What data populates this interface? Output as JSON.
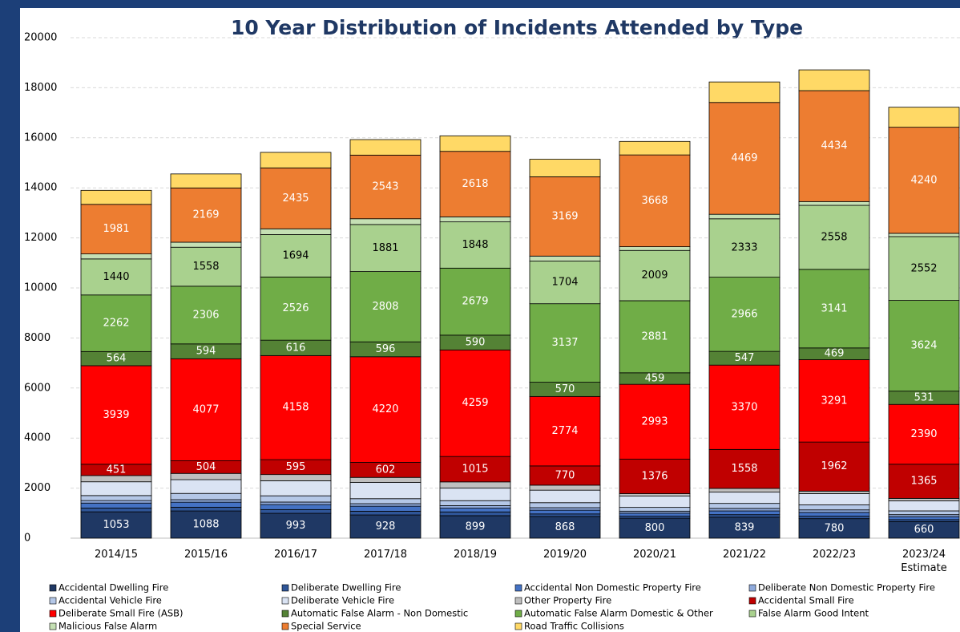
{
  "chart_data": {
    "type": "stacked_bar",
    "title": "10 Year Distribution of Incidents Attended by Type",
    "categories": [
      "2014/15",
      "2015/16",
      "2016/17",
      "2017/18",
      "2018/19",
      "2019/20",
      "2020/21",
      "2021/22",
      "2022/23",
      "2023/24\nEstimate"
    ],
    "ylim": [
      0,
      20000
    ],
    "yticks": [
      0,
      2000,
      4000,
      6000,
      8000,
      10000,
      12000,
      14000,
      16000,
      18000,
      20000
    ],
    "grid": true,
    "legend": "bottom",
    "series": [
      {
        "name": "Accidental Dwelling Fire",
        "color": "#1f3864",
        "show_labels": true,
        "label_color": "#ffffff",
        "values": [
          1053,
          1088,
          993,
          928,
          899,
          868,
          800,
          839,
          780,
          660
        ]
      },
      {
        "name": "Deliberate Dwelling Fire",
        "color": "#2f5597",
        "values": [
          150,
          150,
          150,
          150,
          150,
          100,
          80,
          100,
          100,
          80
        ]
      },
      {
        "name": "Accidental Non Domestic Property Fire",
        "color": "#4472c4",
        "values": [
          200,
          200,
          200,
          200,
          150,
          150,
          120,
          150,
          150,
          120
        ]
      },
      {
        "name": "Deliberate Non Domestic Property Fire",
        "color": "#8faadc",
        "values": [
          100,
          100,
          100,
          100,
          100,
          100,
          80,
          100,
          100,
          80
        ]
      },
      {
        "name": "Accidental Vehicle Fire",
        "color": "#b4c7e7",
        "values": [
          200,
          250,
          250,
          200,
          200,
          200,
          150,
          200,
          200,
          150
        ]
      },
      {
        "name": "Deliberate Vehicle Fire",
        "color": "#dae3f3",
        "values": [
          550,
          550,
          600,
          650,
          500,
          500,
          450,
          450,
          450,
          400
        ]
      },
      {
        "name": "Other Property Fire",
        "color": "#bfbfbf",
        "values": [
          250,
          250,
          250,
          200,
          250,
          200,
          100,
          150,
          100,
          100
        ]
      },
      {
        "name": "Accidental Small Fire",
        "color": "#c00000",
        "show_labels": true,
        "label_color": "#ffffff",
        "values": [
          451,
          504,
          595,
          602,
          1015,
          770,
          1376,
          1558,
          1962,
          1365
        ]
      },
      {
        "name": "Deliberate Small Fire (ASB)",
        "color": "#ff0000",
        "show_labels": true,
        "label_color": "#ffffff",
        "values": [
          3939,
          4077,
          4158,
          4220,
          4259,
          2774,
          2993,
          3370,
          3291,
          2390
        ]
      },
      {
        "name": "Automatic False Alarm - Non Domestic",
        "color": "#548235",
        "show_labels": true,
        "label_color": "#ffffff",
        "values": [
          564,
          594,
          616,
          596,
          590,
          570,
          459,
          547,
          469,
          531
        ]
      },
      {
        "name": "Automatic False Alarm Domestic & Other",
        "color": "#70ad47",
        "show_labels": true,
        "label_color": "#ffffff",
        "values": [
          2262,
          2306,
          2526,
          2808,
          2679,
          3137,
          2881,
          2966,
          3141,
          3624
        ]
      },
      {
        "name": "False Alarm Good Intent",
        "color": "#a9d18e",
        "show_labels": true,
        "label_color": "#000000",
        "values": [
          1440,
          1558,
          1694,
          1881,
          1848,
          1704,
          2009,
          2333,
          2558,
          2552
        ]
      },
      {
        "name": "Malicious False Alarm",
        "color": "#c5e0b4",
        "values": [
          200,
          200,
          230,
          230,
          200,
          200,
          150,
          180,
          150,
          130
        ]
      },
      {
        "name": "Special Service",
        "color": "#ed7d31",
        "show_labels": true,
        "label_color": "#ffffff",
        "values": [
          1981,
          2169,
          2435,
          2543,
          2618,
          3169,
          3668,
          4469,
          4434,
          4240
        ]
      },
      {
        "name": "Road Traffic Collisions",
        "color": "#ffd966",
        "values": [
          560,
          560,
          620,
          620,
          620,
          700,
          540,
          820,
          830,
          800
        ]
      }
    ]
  }
}
